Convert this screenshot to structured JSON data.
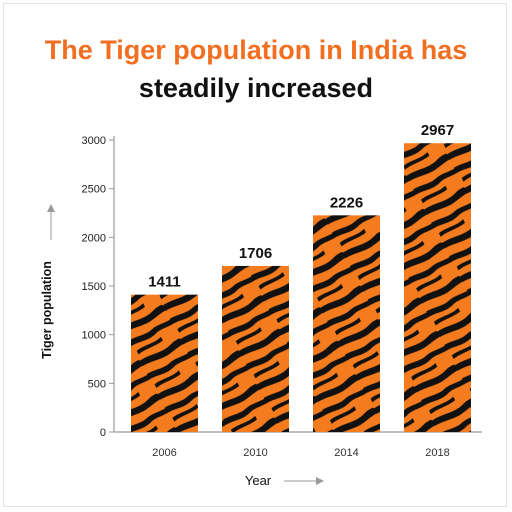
{
  "colors": {
    "accent": "#f26f21",
    "stripe": "#111111",
    "axis": "#9a9a9a"
  },
  "title": {
    "line1": "The Tiger population in India has",
    "line2": "steadily increased"
  },
  "chart_data": {
    "type": "bar",
    "title": "The Tiger population in India has steadily increased",
    "categories": [
      "2006",
      "2010",
      "2014",
      "2018"
    ],
    "values": [
      1411,
      1706,
      2226,
      2967
    ],
    "data_labels": [
      "1411",
      "1706",
      "2226",
      "2967"
    ],
    "xlabel": "Year",
    "ylabel": "Tiger population",
    "ylim": [
      0,
      3000
    ],
    "yticks": [
      0,
      500,
      1000,
      1500,
      2000,
      2500,
      3000
    ],
    "ytick_labels": [
      "0",
      "500",
      "1000",
      "1500",
      "2000",
      "2500",
      "3000"
    ],
    "grid": false,
    "bar_fill": "tiger-stripe pattern"
  }
}
